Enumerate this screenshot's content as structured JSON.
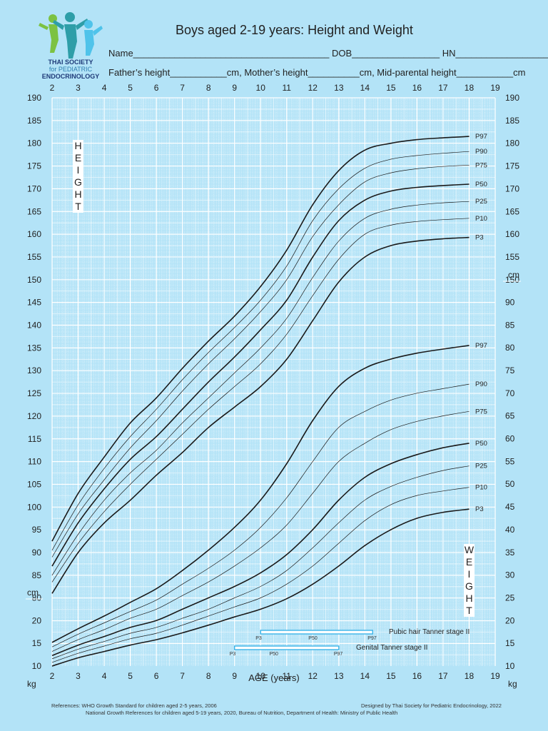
{
  "header": {
    "title": "Boys aged 2-19 years: Height and Weight",
    "line1": "Name______________________________________ DOB_________________ HN___________________",
    "line2": "Father’s height___________cm, Mother’s height__________cm, Mid-parental height___________cm"
  },
  "logo": {
    "line1": "THAI SOCIETY",
    "line2": "for PEDIATRIC",
    "line3": "ENDOCRINOLOGY"
  },
  "footer": {
    "references_1": "References:  WHO Growth Standard for children aged 2-5 years, 2006",
    "references_2": "National Growth References for children aged 5-19 years, 2020, Bureau of Nutrition, Department of Health: Ministry of Public Health",
    "designed_by": "Designed by Thai Society for Pediatric Endocrinology, 2022"
  },
  "labels": {
    "height_vertical": [
      "H",
      "E",
      "I",
      "G",
      "H",
      "T"
    ],
    "weight_vertical": [
      "W",
      "E",
      "I",
      "G",
      "H",
      "T"
    ],
    "x_axis_label": "AGE (years)",
    "height_unit": "cm",
    "height_unit_left": "cm",
    "weight_unit_left": "kg",
    "weight_unit_right": "kg"
  },
  "chart_data": {
    "type": "line",
    "title": "Boys aged 2-19 years: Height and Weight",
    "xlabel": "AGE (years)",
    "x_ticks": [
      2,
      3,
      4,
      5,
      6,
      7,
      8,
      9,
      10,
      11,
      12,
      13,
      14,
      15,
      16,
      17,
      18,
      19
    ],
    "xlim": [
      2,
      19
    ],
    "height_axis": {
      "unit": "cm",
      "ticks_left": [
        80,
        85,
        90,
        95,
        100,
        105,
        110,
        115,
        120,
        125,
        130,
        135,
        140,
        145,
        150,
        155,
        160,
        165,
        170,
        175,
        180,
        185,
        190
      ],
      "ticks_right": [
        150,
        155,
        160,
        165,
        170,
        175,
        180,
        185,
        190
      ],
      "ylim": [
        80,
        190
      ]
    },
    "weight_axis": {
      "unit": "kg",
      "ticks_left": [
        10,
        15,
        20
      ],
      "ticks_right": [
        10,
        15,
        20,
        25,
        30,
        35,
        40,
        45,
        50,
        55,
        60,
        65,
        70,
        75,
        80,
        85,
        90
      ],
      "ylim": [
        7.5,
        94
      ]
    },
    "height_series": [
      {
        "name": "P97",
        "x": [
          2,
          3,
          4,
          5,
          6,
          7,
          8,
          9,
          10,
          11,
          12,
          13,
          14,
          15,
          16,
          17,
          18,
          19
        ],
        "values": [
          92.5,
          103,
          111,
          118.5,
          124,
          130.5,
          136.5,
          142,
          148.5,
          156.5,
          166.5,
          174,
          178.5,
          180,
          180.8,
          181.2,
          181.5,
          181.6
        ]
      },
      {
        "name": "P90",
        "x": [
          2,
          3,
          4,
          5,
          6,
          7,
          8,
          9,
          10,
          11,
          12,
          13,
          14,
          15,
          16,
          17,
          18,
          19
        ],
        "values": [
          90.5,
          100.5,
          108.5,
          115.5,
          121.5,
          128,
          134,
          139.5,
          145.5,
          153,
          163,
          170,
          174.5,
          176.5,
          177.3,
          177.8,
          178.2,
          178.4
        ]
      },
      {
        "name": "P75",
        "x": [
          2,
          3,
          4,
          5,
          6,
          7,
          8,
          9,
          10,
          11,
          12,
          13,
          14,
          15,
          16,
          17,
          18,
          19
        ],
        "values": [
          89,
          98.5,
          106,
          113,
          119,
          125.5,
          131.5,
          137,
          143,
          150,
          159.5,
          166.5,
          171.5,
          173.5,
          174.4,
          174.9,
          175.2,
          175.4
        ]
      },
      {
        "name": "P50",
        "x": [
          2,
          3,
          4,
          5,
          6,
          7,
          8,
          9,
          10,
          11,
          12,
          13,
          14,
          15,
          16,
          17,
          18,
          19
        ],
        "values": [
          87,
          96.5,
          104,
          110.5,
          115.5,
          121.5,
          127.5,
          133,
          139,
          145.5,
          155,
          163,
          167.5,
          169.5,
          170.3,
          170.7,
          171,
          171.1
        ]
      },
      {
        "name": "P25",
        "x": [
          2,
          3,
          4,
          5,
          6,
          7,
          8,
          9,
          10,
          11,
          12,
          13,
          14,
          15,
          16,
          17,
          18,
          19
        ],
        "values": [
          85,
          94,
          101.5,
          107.5,
          112.5,
          118.5,
          124,
          129.5,
          135,
          141.5,
          150.5,
          158.5,
          163.5,
          165.5,
          166.4,
          166.9,
          167.2,
          167.3
        ]
      },
      {
        "name": "P10",
        "x": [
          2,
          3,
          4,
          5,
          6,
          7,
          8,
          9,
          10,
          11,
          12,
          13,
          14,
          15,
          16,
          17,
          18,
          19
        ],
        "values": [
          83.5,
          92,
          99,
          105,
          110.5,
          116,
          121.5,
          126.5,
          131.5,
          138,
          146.5,
          154.5,
          160,
          162,
          162.8,
          163.2,
          163.5,
          163.6
        ]
      },
      {
        "name": "P3",
        "x": [
          2,
          3,
          4,
          5,
          6,
          7,
          8,
          9,
          10,
          11,
          12,
          13,
          14,
          15,
          16,
          17,
          18,
          19
        ],
        "values": [
          81,
          90,
          96.5,
          101.5,
          107,
          112,
          117.5,
          122,
          126.5,
          132.5,
          141,
          149.5,
          155,
          157.5,
          158.5,
          159,
          159.3,
          159.4
        ]
      }
    ],
    "weight_series": [
      {
        "name": "P97",
        "x": [
          2,
          3,
          4,
          5,
          6,
          7,
          8,
          9,
          10,
          11,
          12,
          13,
          14,
          15,
          16,
          17,
          18,
          19
        ],
        "values": [
          15.2,
          18.2,
          21,
          24,
          27,
          31,
          35.5,
          40.5,
          46.5,
          54.5,
          64,
          71.5,
          75.5,
          77.5,
          78.8,
          79.7,
          80.5,
          81
        ]
      },
      {
        "name": "P90",
        "x": [
          2,
          3,
          4,
          5,
          6,
          7,
          8,
          9,
          10,
          11,
          12,
          13,
          14,
          15,
          16,
          17,
          18,
          19
        ],
        "values": [
          14.2,
          17,
          19.5,
          22,
          24.5,
          28,
          31.5,
          35.5,
          40.5,
          47,
          55,
          62.5,
          66,
          68.5,
          70,
          71,
          72,
          72.5
        ]
      },
      {
        "name": "P75",
        "x": [
          2,
          3,
          4,
          5,
          6,
          7,
          8,
          9,
          10,
          11,
          12,
          13,
          14,
          15,
          16,
          17,
          18,
          19
        ],
        "values": [
          13.2,
          15.8,
          18,
          20.5,
          22.5,
          25.5,
          28.5,
          32,
          36,
          41,
          48,
          55,
          59,
          62,
          63.8,
          65,
          66,
          66.7
        ]
      },
      {
        "name": "P50",
        "x": [
          2,
          3,
          4,
          5,
          6,
          7,
          8,
          9,
          10,
          11,
          12,
          13,
          14,
          15,
          16,
          17,
          18,
          19
        ],
        "values": [
          12.3,
          14.6,
          16.5,
          18.5,
          20,
          22.5,
          25,
          27.5,
          30.5,
          34.5,
          40,
          46.5,
          51.5,
          54.5,
          56.5,
          58,
          59,
          59.8
        ]
      },
      {
        "name": "P25",
        "x": [
          2,
          3,
          4,
          5,
          6,
          7,
          8,
          9,
          10,
          11,
          12,
          13,
          14,
          15,
          16,
          17,
          18,
          19
        ],
        "values": [
          11.6,
          13.7,
          15.4,
          17.2,
          18.5,
          20.5,
          22.5,
          25,
          27.5,
          31,
          36,
          41.5,
          46.5,
          49.5,
          51.5,
          53,
          54,
          54.6
        ]
      },
      {
        "name": "P10",
        "x": [
          2,
          3,
          4,
          5,
          6,
          7,
          8,
          9,
          10,
          11,
          12,
          13,
          14,
          15,
          16,
          17,
          18,
          19
        ],
        "values": [
          10.8,
          12.8,
          14.4,
          16,
          17.2,
          19,
          21,
          23,
          25,
          28,
          32,
          37,
          42,
          45.5,
          47.5,
          48.5,
          49.3,
          49.8
        ]
      },
      {
        "name": "P3",
        "x": [
          2,
          3,
          4,
          5,
          6,
          7,
          8,
          9,
          10,
          11,
          12,
          13,
          14,
          15,
          16,
          17,
          18,
          19
        ],
        "values": [
          10,
          11.8,
          13.2,
          14.6,
          15.8,
          17.3,
          19,
          20.8,
          22.5,
          24.8,
          28,
          32,
          36.5,
          40,
          42.5,
          43.8,
          44.5,
          45
        ]
      }
    ],
    "tanner_bars": [
      {
        "label": "Pubic hair Tanner stage II",
        "p3_label": "P3",
        "p50_label": "P50",
        "p97_label": "P97",
        "p3": 10,
        "p50": 12,
        "p97": 14.3
      },
      {
        "label": "Genital Tanner stage II",
        "p3_label": "P3",
        "p50_label": "P50",
        "p97_label": "P97",
        "p3": 9,
        "p50": 10.5,
        "p97": 13
      }
    ],
    "colors": {
      "background": "#b3e3f7",
      "grid_major": "#ffffff",
      "grid_minor": "#dcf2fc",
      "line": "#1a1a1a",
      "tanner_bar": "#3ab4e8"
    }
  }
}
